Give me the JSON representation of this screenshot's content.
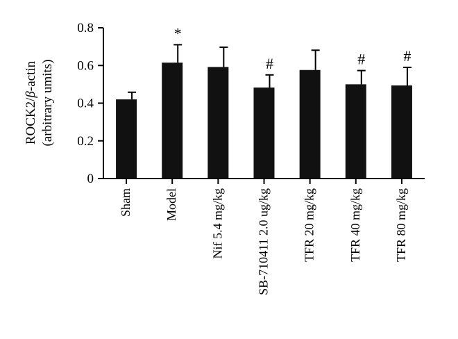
{
  "chart_data": {
    "type": "bar",
    "categories": [
      "Sham",
      "Model",
      "Nif 5.4 mg/kg",
      "SB-710411 2.0 ug/kg",
      "TFR 20 mg/kg",
      "TFR 40 mg/kg",
      "TFR 80 mg/kg"
    ],
    "values": [
      0.42,
      0.615,
      0.592,
      0.483,
      0.576,
      0.5,
      0.494
    ],
    "errors": [
      0.038,
      0.095,
      0.105,
      0.067,
      0.105,
      0.073,
      0.096
    ],
    "annotations": [
      "",
      "*",
      "",
      "#",
      "",
      "#",
      "#"
    ],
    "ylabel_line1_prefix": "ROCK2/",
    "ylabel_line1_greek": "β",
    "ylabel_line1_suffix": "-actin",
    "ylabel_line2": "(arbitrary umits)",
    "ylim": [
      0,
      0.8
    ],
    "yticks": [
      "0",
      "0.2",
      "0.4",
      "0.6",
      "0.8"
    ],
    "ytick_values": [
      0,
      0.2,
      0.4,
      0.6,
      0.8
    ],
    "grid": false,
    "colors": {
      "bar": "#111111",
      "axis": "#000000"
    }
  }
}
